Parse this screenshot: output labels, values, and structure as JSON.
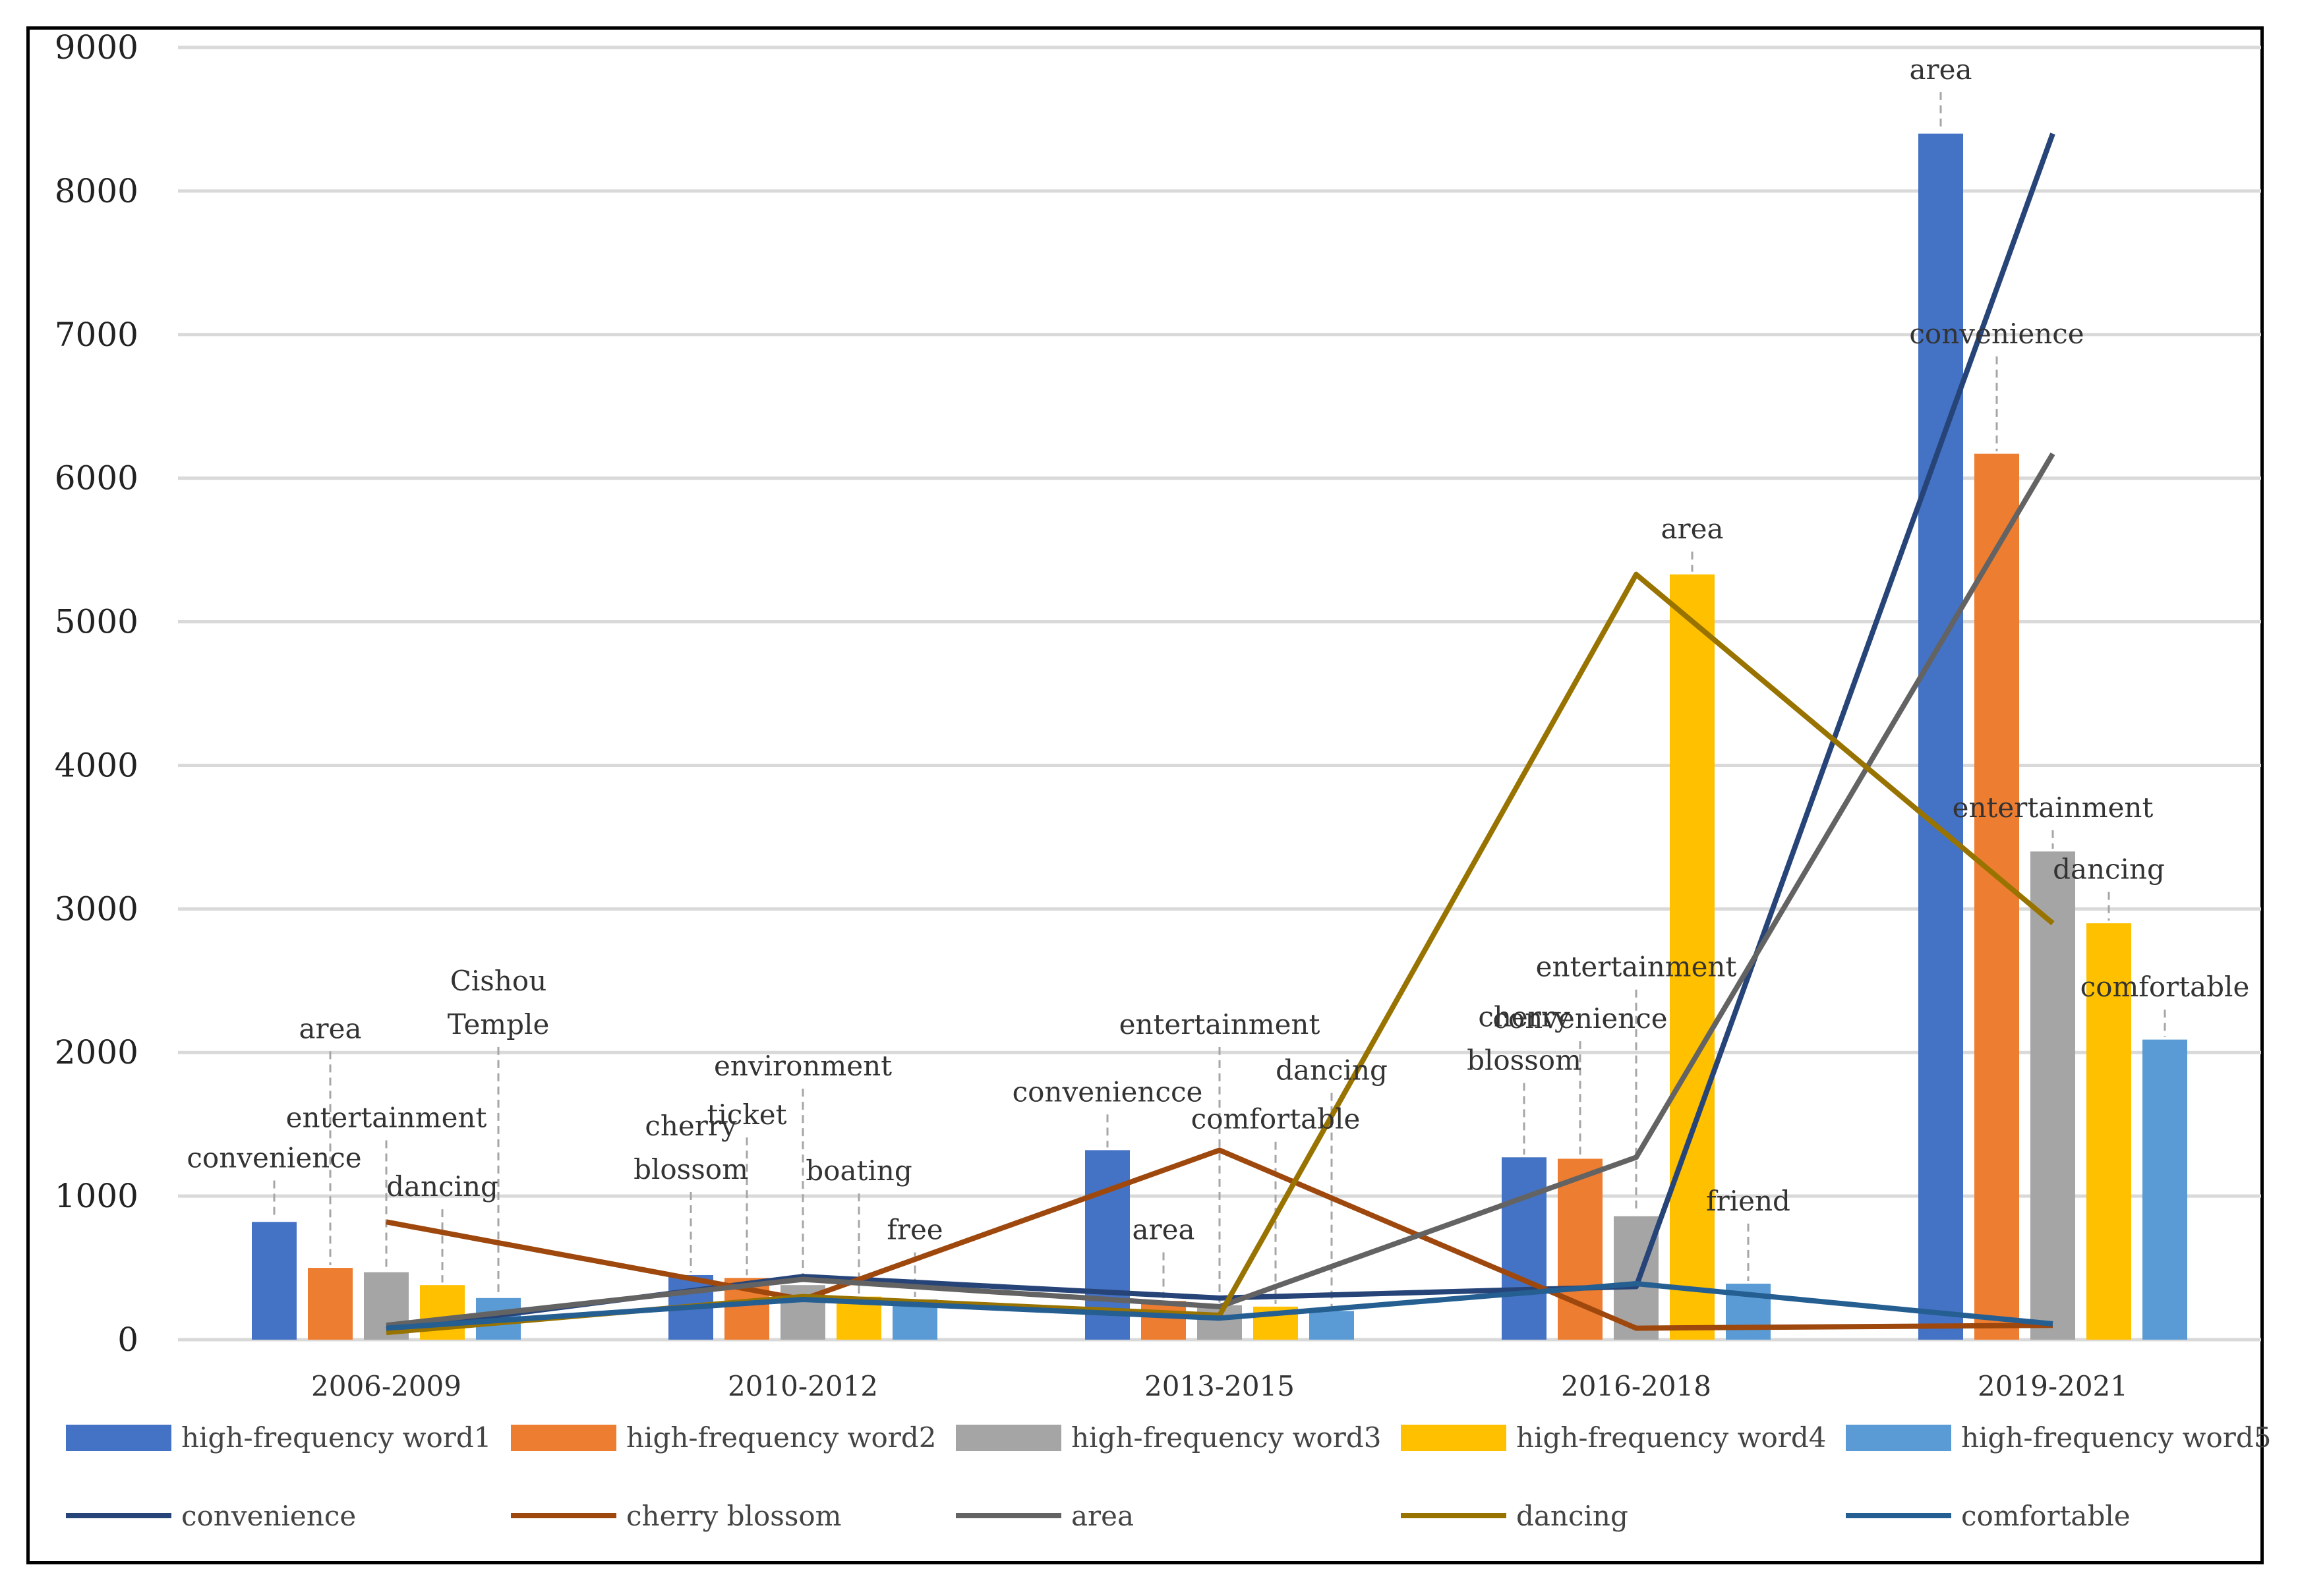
{
  "chart_data": {
    "type": "bar+line",
    "title": "",
    "xlabel": "",
    "ylabel": "",
    "ylim": [
      0,
      9000
    ],
    "yticks": [
      0,
      1000,
      2000,
      3000,
      4000,
      5000,
      6000,
      7000,
      8000,
      9000
    ],
    "grid": true,
    "legend_position": "bottom",
    "categories": [
      "2006-2009",
      "2010-2012",
      "2013-2015",
      "2016-2018",
      "2019-2021"
    ],
    "bar_series": [
      {
        "name": "high-frequency word1",
        "color": "#4472C4",
        "values": [
          820,
          450,
          1320,
          1270,
          8400
        ]
      },
      {
        "name": "high-frequency word2",
        "color": "#ED7D31",
        "values": [
          500,
          430,
          270,
          1260,
          6170
        ]
      },
      {
        "name": "high-frequency word3",
        "color": "#A5A5A5",
        "values": [
          470,
          380,
          240,
          860,
          3400
        ]
      },
      {
        "name": "high-frequency word4",
        "color": "#FFC000",
        "values": [
          380,
          300,
          230,
          5330,
          2900
        ]
      },
      {
        "name": "high-frequency word5",
        "color": "#5B9BD5",
        "values": [
          290,
          280,
          200,
          390,
          2090
        ]
      }
    ],
    "line_series": [
      {
        "name": "convenience",
        "color": "#264478",
        "values": [
          70,
          440,
          290,
          370,
          8400
        ]
      },
      {
        "name": "cherry blossom",
        "color": "#9E480E",
        "values": [
          820,
          280,
          1320,
          80,
          100
        ]
      },
      {
        "name": "area",
        "color": "#636363",
        "values": [
          100,
          420,
          230,
          1270,
          6170
        ]
      },
      {
        "name": "dancing",
        "color": "#997300",
        "values": [
          50,
          300,
          170,
          5330,
          2900
        ]
      },
      {
        "name": "comfortable",
        "color": "#255E91",
        "values": [
          80,
          280,
          150,
          390,
          110
        ]
      }
    ],
    "annotations": [
      {
        "cat": 0,
        "bar": 0,
        "lines": [
          "convenience"
        ],
        "level": 1200
      },
      {
        "cat": 0,
        "bar": 1,
        "lines": [
          "area"
        ],
        "level": 2100
      },
      {
        "cat": 0,
        "bar": 2,
        "lines": [
          "entertainment"
        ],
        "level": 1480
      },
      {
        "cat": 0,
        "bar": 3,
        "lines": [
          "dancing"
        ],
        "level": 1000
      },
      {
        "cat": 0,
        "bar": 4,
        "lines": [
          "Cishou",
          "Temple"
        ],
        "level": 2130
      },
      {
        "cat": 1,
        "bar": 0,
        "lines": [
          "cherry",
          "blossom"
        ],
        "level": 1120
      },
      {
        "cat": 1,
        "bar": 1,
        "lines": [
          "ticket"
        ],
        "level": 1500
      },
      {
        "cat": 1,
        "bar": 2,
        "lines": [
          "environment"
        ],
        "level": 1840
      },
      {
        "cat": 1,
        "bar": 3,
        "lines": [
          "boating"
        ],
        "level": 1110
      },
      {
        "cat": 1,
        "bar": 4,
        "lines": [
          "free"
        ],
        "level": 700
      },
      {
        "cat": 2,
        "bar": 0,
        "lines": [
          "conveniencce"
        ],
        "level": 1660
      },
      {
        "cat": 2,
        "bar": 1,
        "lines": [
          "area"
        ],
        "level": 700
      },
      {
        "cat": 2,
        "bar": 2,
        "lines": [
          "entertainment"
        ],
        "level": 2130
      },
      {
        "cat": 2,
        "bar": 3,
        "lines": [
          "comfortable"
        ],
        "level": 1470
      },
      {
        "cat": 2,
        "bar": 4,
        "lines": [
          "dancing"
        ],
        "level": 1810
      },
      {
        "cat": 3,
        "bar": 0,
        "lines": [
          "cherry",
          "blossom"
        ],
        "level": 1880
      },
      {
        "cat": 3,
        "bar": 1,
        "lines": [
          "convenience"
        ],
        "level": 2170
      },
      {
        "cat": 3,
        "bar": 2,
        "lines": [
          "entertainment"
        ],
        "level": 2530
      },
      {
        "cat": 3,
        "bar": 3,
        "lines": [
          "area"
        ],
        "level": 5580
      },
      {
        "cat": 3,
        "bar": 4,
        "lines": [
          "friend"
        ],
        "level": 900
      },
      {
        "cat": 4,
        "bar": 0,
        "lines": [
          "area"
        ],
        "level": 8780
      },
      {
        "cat": 4,
        "bar": 1,
        "lines": [
          "convenience"
        ],
        "level": 6940
      },
      {
        "cat": 4,
        "bar": 2,
        "lines": [
          "entertainment"
        ],
        "level": 3640
      },
      {
        "cat": 4,
        "bar": 3,
        "lines": [
          "dancing"
        ],
        "level": 3210
      },
      {
        "cat": 4,
        "bar": 4,
        "lines": [
          "comfortable"
        ],
        "level": 2390
      }
    ]
  }
}
